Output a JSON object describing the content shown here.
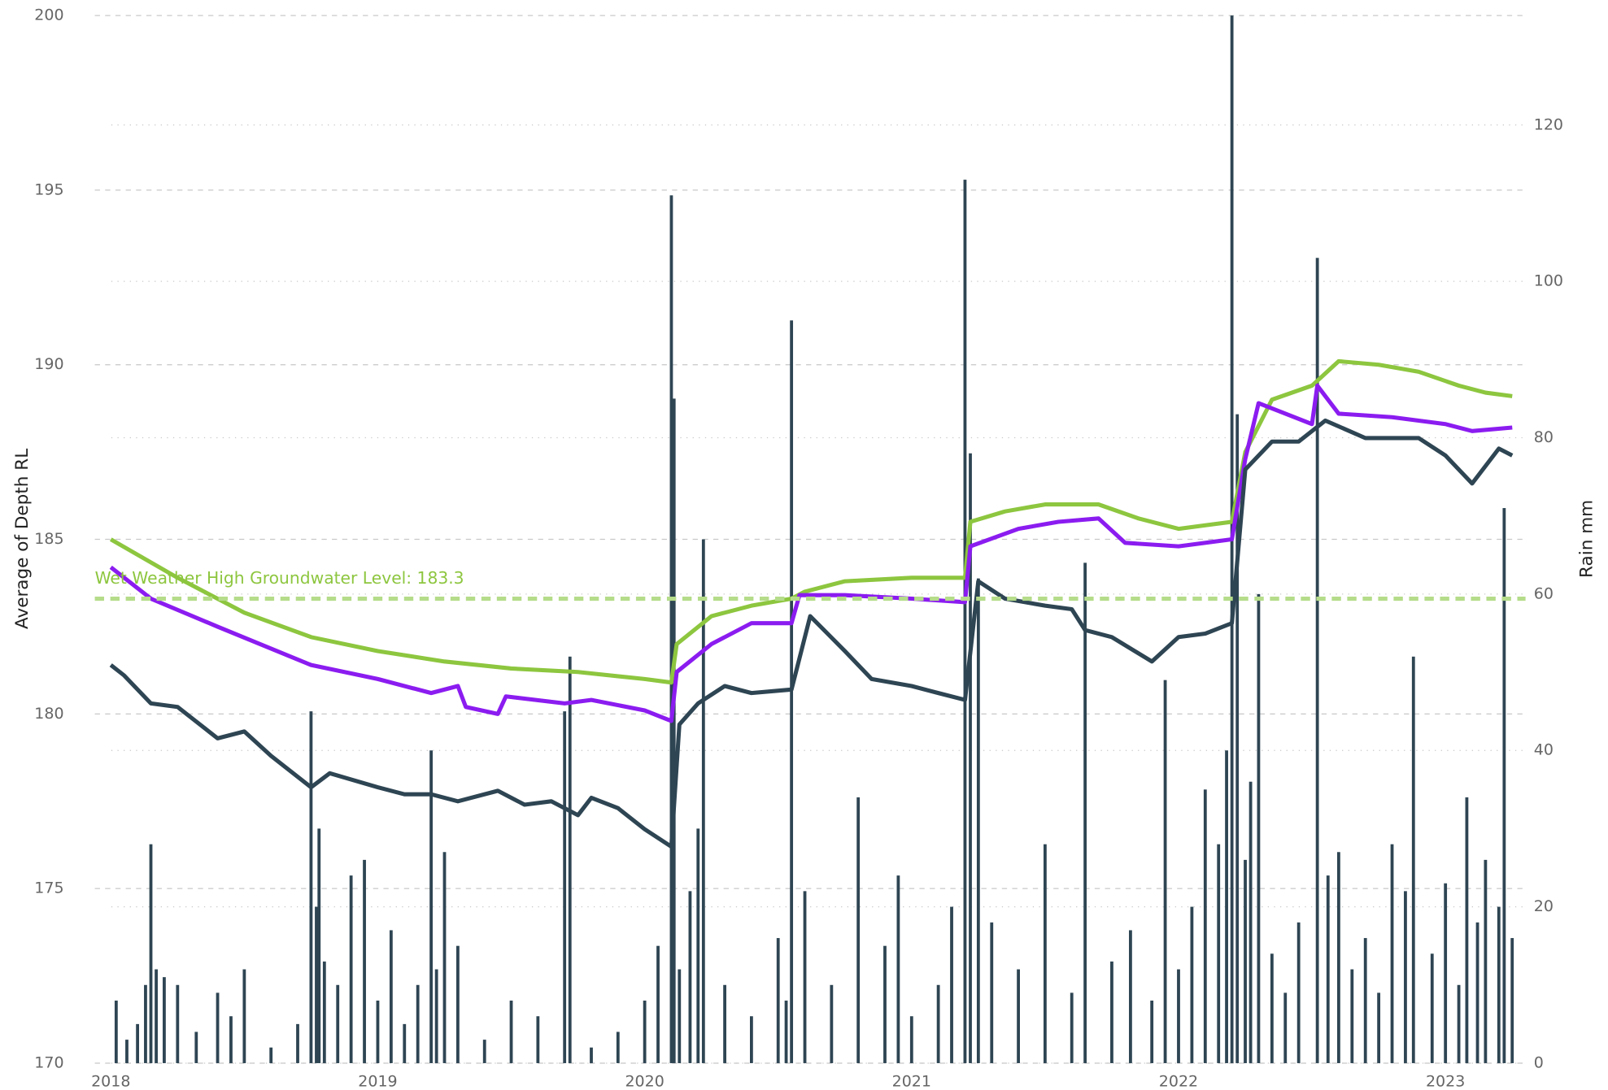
{
  "chart_data": {
    "type": "line",
    "y_label": "Average of Depth RL",
    "y2_label": "Rain mm",
    "xlim": [
      2017.94,
      2023.3
    ],
    "xticks": [
      2018,
      2019,
      2020,
      2021,
      2022,
      2023
    ],
    "ylim": [
      170,
      200
    ],
    "yticks": [
      170,
      175,
      180,
      185,
      190,
      195,
      200
    ],
    "y2lim": [
      0,
      134
    ],
    "y2ticks": [
      0,
      20,
      40,
      60,
      80,
      100,
      120
    ],
    "grid": true,
    "reference_line": {
      "value": 183.3,
      "label": "Wet Weather High Groundwater Level: 183.3",
      "color": "#b5dc8a"
    },
    "series": [
      {
        "type": "bar",
        "axis": "y2",
        "color": "#2e4553",
        "x": [
          2018.02,
          2018.06,
          2018.1,
          2018.13,
          2018.15,
          2018.17,
          2018.2,
          2018.25,
          2018.32,
          2018.4,
          2018.45,
          2018.5,
          2018.6,
          2018.7,
          2018.75,
          2018.77,
          2018.78,
          2018.8,
          2018.85,
          2018.9,
          2018.95,
          2019.0,
          2019.05,
          2019.1,
          2019.15,
          2019.2,
          2019.22,
          2019.25,
          2019.3,
          2019.4,
          2019.5,
          2019.6,
          2019.7,
          2019.72,
          2019.8,
          2019.9,
          2020.0,
          2020.05,
          2020.1,
          2020.11,
          2020.13,
          2020.17,
          2020.2,
          2020.22,
          2020.3,
          2020.4,
          2020.5,
          2020.53,
          2020.55,
          2020.6,
          2020.7,
          2020.8,
          2020.9,
          2020.95,
          2021.0,
          2021.1,
          2021.15,
          2021.2,
          2021.22,
          2021.25,
          2021.3,
          2021.4,
          2021.5,
          2021.6,
          2021.65,
          2021.75,
          2021.82,
          2021.9,
          2021.95,
          2022.0,
          2022.05,
          2022.1,
          2022.15,
          2022.18,
          2022.2,
          2022.22,
          2022.25,
          2022.27,
          2022.3,
          2022.35,
          2022.4,
          2022.45,
          2022.52,
          2022.56,
          2022.6,
          2022.65,
          2022.7,
          2022.75,
          2022.8,
          2022.85,
          2022.88,
          2022.95,
          2023.0,
          2023.05,
          2023.08,
          2023.12,
          2023.15,
          2023.2,
          2023.22,
          2023.25
        ],
        "values": [
          8,
          3,
          5,
          10,
          28,
          12,
          11,
          10,
          4,
          9,
          6,
          12,
          2,
          5,
          45,
          20,
          30,
          13,
          10,
          24,
          26,
          8,
          17,
          5,
          10,
          40,
          12,
          27,
          15,
          3,
          8,
          6,
          45,
          52,
          2,
          4,
          8,
          15,
          111,
          85,
          12,
          22,
          30,
          67,
          10,
          6,
          16,
          8,
          95,
          22,
          10,
          34,
          15,
          24,
          6,
          10,
          20,
          113,
          78,
          62,
          18,
          12,
          28,
          9,
          64,
          13,
          17,
          8,
          49,
          12,
          20,
          35,
          28,
          40,
          134,
          83,
          26,
          36,
          60,
          14,
          9,
          18,
          103,
          24,
          27,
          12,
          16,
          9,
          28,
          22,
          52,
          14,
          23,
          10,
          34,
          18,
          26,
          20,
          71,
          16
        ]
      },
      {
        "color": "#8dc63f",
        "x": [
          2018.0,
          2018.25,
          2018.5,
          2018.75,
          2019.0,
          2019.25,
          2019.5,
          2019.75,
          2020.0,
          2020.1,
          2020.12,
          2020.25,
          2020.4,
          2020.55,
          2020.6,
          2020.75,
          2021.0,
          2021.2,
          2021.22,
          2021.35,
          2021.5,
          2021.7,
          2021.85,
          2022.0,
          2022.1,
          2022.2,
          2022.25,
          2022.35,
          2022.5,
          2022.6,
          2022.75,
          2022.9,
          2023.05,
          2023.15,
          2023.25
        ],
        "values": [
          185.0,
          183.9,
          182.9,
          182.2,
          181.8,
          181.5,
          181.3,
          181.2,
          181.0,
          180.9,
          182.0,
          182.8,
          183.1,
          183.3,
          183.5,
          183.8,
          183.9,
          183.9,
          185.5,
          185.8,
          186.0,
          186.0,
          185.6,
          185.3,
          185.4,
          185.5,
          187.5,
          189.0,
          189.4,
          190.1,
          190.0,
          189.8,
          189.4,
          189.2,
          189.1
        ]
      },
      {
        "color": "#8b1cf0",
        "x": [
          2018.0,
          2018.15,
          2018.4,
          2018.75,
          2019.0,
          2019.2,
          2019.3,
          2019.33,
          2019.45,
          2019.48,
          2019.7,
          2019.8,
          2020.0,
          2020.1,
          2020.12,
          2020.25,
          2020.4,
          2020.55,
          2020.58,
          2020.75,
          2021.0,
          2021.2,
          2021.22,
          2021.4,
          2021.55,
          2021.7,
          2021.8,
          2022.0,
          2022.2,
          2022.25,
          2022.3,
          2022.5,
          2022.52,
          2022.6,
          2022.8,
          2023.0,
          2023.1,
          2023.25
        ],
        "values": [
          184.2,
          183.3,
          182.5,
          181.4,
          181.0,
          180.6,
          180.8,
          180.2,
          180.0,
          180.5,
          180.3,
          180.4,
          180.1,
          179.8,
          181.2,
          182.0,
          182.6,
          182.6,
          183.4,
          183.4,
          183.3,
          183.2,
          184.8,
          185.3,
          185.5,
          185.6,
          184.9,
          184.8,
          185.0,
          187.3,
          188.9,
          188.3,
          189.4,
          188.6,
          188.5,
          188.3,
          188.1,
          188.2
        ]
      },
      {
        "color": "#2e4553",
        "x": [
          2018.0,
          2018.05,
          2018.15,
          2018.25,
          2018.4,
          2018.5,
          2018.6,
          2018.75,
          2018.82,
          2019.0,
          2019.1,
          2019.2,
          2019.3,
          2019.45,
          2019.55,
          2019.65,
          2019.75,
          2019.8,
          2019.9,
          2020.0,
          2020.1,
          2020.13,
          2020.2,
          2020.3,
          2020.4,
          2020.55,
          2020.62,
          2020.75,
          2020.85,
          2021.0,
          2021.1,
          2021.2,
          2021.25,
          2021.35,
          2021.5,
          2021.6,
          2021.65,
          2021.75,
          2021.9,
          2022.0,
          2022.1,
          2022.2,
          2022.25,
          2022.35,
          2022.45,
          2022.55,
          2022.7,
          2022.9,
          2023.0,
          2023.1,
          2023.2,
          2023.25
        ],
        "values": [
          181.4,
          181.1,
          180.3,
          180.2,
          179.3,
          179.5,
          178.8,
          177.9,
          178.3,
          177.9,
          177.7,
          177.7,
          177.5,
          177.8,
          177.4,
          177.5,
          177.1,
          177.6,
          177.3,
          176.7,
          176.2,
          179.7,
          180.3,
          180.8,
          180.6,
          180.7,
          182.8,
          181.8,
          181.0,
          180.8,
          180.6,
          180.4,
          183.8,
          183.3,
          183.1,
          183.0,
          182.4,
          182.2,
          181.5,
          182.2,
          182.3,
          182.6,
          187.0,
          187.8,
          187.8,
          188.4,
          187.9,
          187.9,
          187.4,
          186.6,
          187.6,
          187.4
        ]
      }
    ]
  }
}
